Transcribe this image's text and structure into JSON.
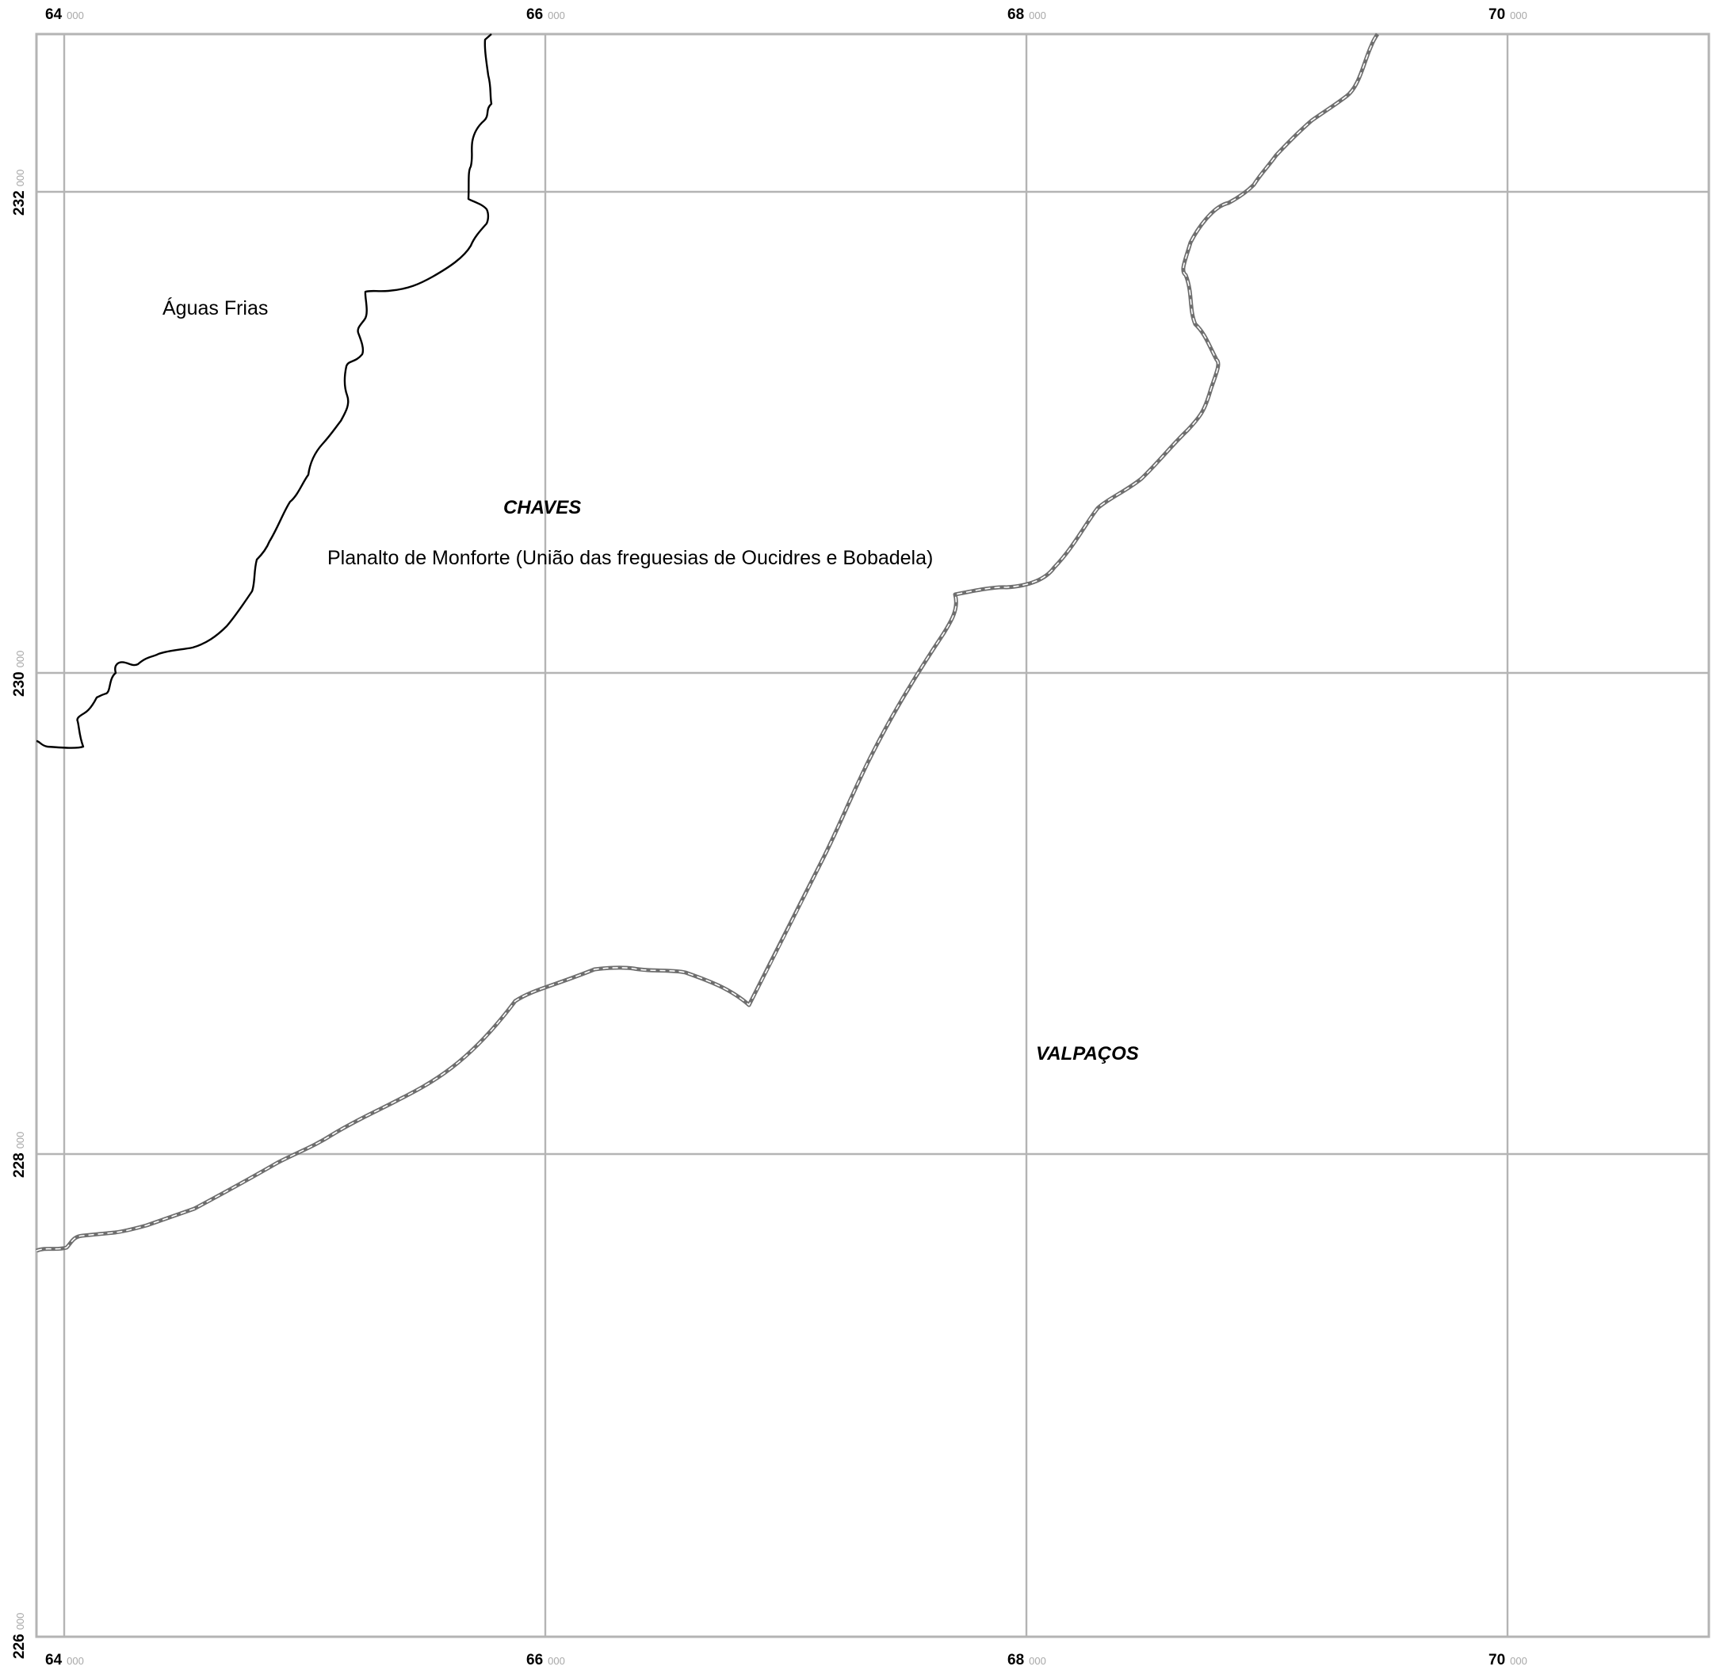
{
  "map": {
    "grid": {
      "x_ticks": [
        {
          "major": "64",
          "minor": "000"
        },
        {
          "major": "66",
          "minor": "000"
        },
        {
          "major": "68",
          "minor": "000"
        },
        {
          "major": "70",
          "minor": "000"
        }
      ],
      "y_ticks": [
        {
          "major": "232",
          "minor": "000"
        },
        {
          "major": "230",
          "minor": "000"
        },
        {
          "major": "228",
          "minor": "000"
        },
        {
          "major": "226",
          "minor": "000"
        }
      ]
    },
    "labels": {
      "parish_aguas_frias": "Águas Frias",
      "parish_planalto": "Planalto de Monforte (União das freguesias de Oucidres e Bobadela)",
      "municipality_chaves": "CHAVES",
      "municipality_valpacos": "VALPAÇOS"
    },
    "colors": {
      "grid": "#b4b4b4",
      "parish_boundary": "#000000",
      "municipal_boundary": "#6e6e6e",
      "tick_minor": "#a8a8a8"
    }
  }
}
